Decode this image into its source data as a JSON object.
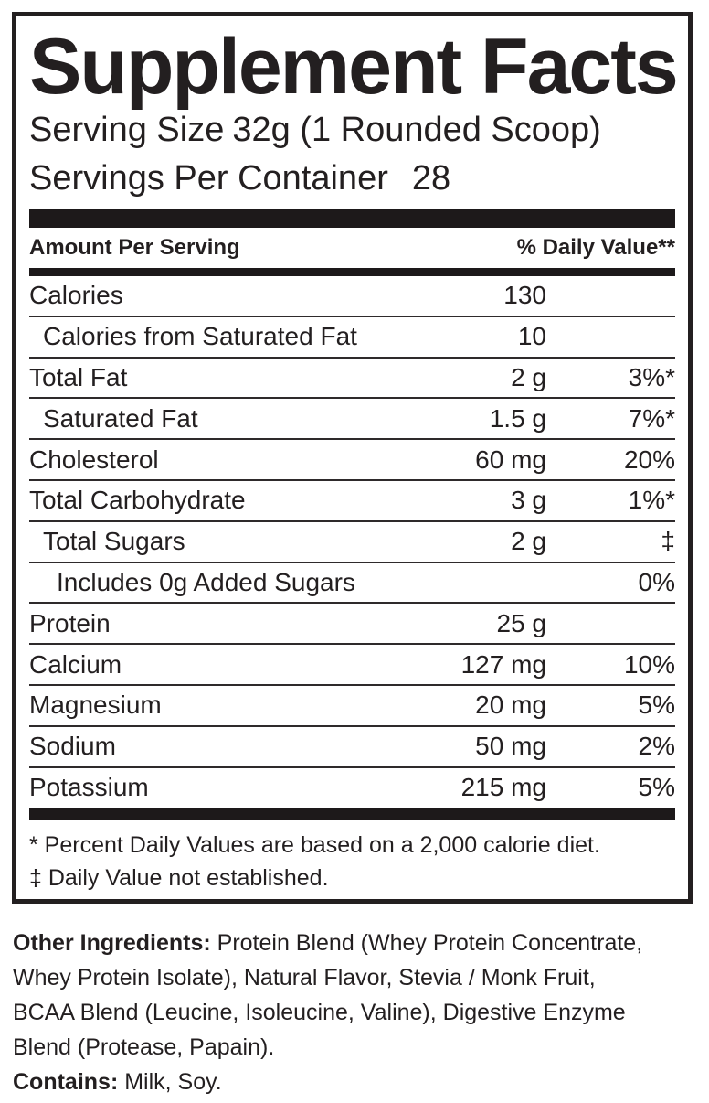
{
  "panel": {
    "title": "Supplement Facts",
    "serving_size": {
      "label": "Serving Size",
      "value": "32g (1 Rounded Scoop)"
    },
    "servings_per_container": {
      "label": "Servings Per Container",
      "value": "28"
    },
    "columns": {
      "left": "Amount Per Serving",
      "right": "% Daily Value**"
    },
    "rows": [
      {
        "name": "Calories",
        "amount": "130",
        "daily_value": "",
        "indent": 0
      },
      {
        "name": "Calories from Saturated Fat",
        "amount": "10",
        "daily_value": "",
        "indent": 1
      },
      {
        "name": "Total Fat",
        "amount": "2 g",
        "daily_value": "3%*",
        "indent": 0
      },
      {
        "name": "Saturated Fat",
        "amount": "1.5 g",
        "daily_value": "7%*",
        "indent": 1
      },
      {
        "name": "Cholesterol",
        "amount": "60 mg",
        "daily_value": "20%",
        "indent": 0
      },
      {
        "name": "Total Carbohydrate",
        "amount": "3 g",
        "daily_value": "1%*",
        "indent": 0
      },
      {
        "name": "Total Sugars",
        "amount": "2 g",
        "daily_value": "‡",
        "indent": 1
      },
      {
        "name": "Includes 0g Added Sugars",
        "amount": "",
        "daily_value": "0%",
        "indent": 2
      },
      {
        "name": "Protein",
        "amount": "25 g",
        "daily_value": "",
        "indent": 0
      },
      {
        "name": "Calcium",
        "amount": "127 mg",
        "daily_value": "10%",
        "indent": 0
      },
      {
        "name": "Magnesium",
        "amount": "20 mg",
        "daily_value": "5%",
        "indent": 0
      },
      {
        "name": "Sodium",
        "amount": "50 mg",
        "daily_value": "2%",
        "indent": 0
      },
      {
        "name": "Potassium",
        "amount": "215 mg",
        "daily_value": "5%",
        "indent": 0
      }
    ],
    "footnotes": [
      "* Percent Daily Values are based on a 2,000 calorie diet.",
      "‡ Daily Value not established."
    ]
  },
  "other_ingredients": {
    "label": "Other Ingredients:",
    "lines": [
      "Protein Blend (Whey Protein Concentrate,",
      "Whey Protein Isolate), Natural Flavor, Stevia / Monk Fruit,",
      "BCAA Blend (Leucine, Isoleucine, Valine), Digestive Enzyme",
      "Blend (Protease, Papain)."
    ]
  },
  "contains": {
    "label": "Contains:",
    "value": "Milk, Soy."
  },
  "colors": {
    "text": "#231f20",
    "bar": "#1d191a"
  }
}
